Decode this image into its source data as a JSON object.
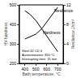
{
  "chart_data": {
    "type": "line",
    "x_label": "Bath temperature, °C",
    "y_label": "HV hardness",
    "y2_label": "Resilience J/cm²",
    "x": [
      400,
      450,
      500,
      550,
      600,
      650,
      700
    ],
    "series": [
      {
        "name": "Hardness",
        "color": "#000000",
        "values": [
          470,
          450,
          420,
          380,
          340,
          300,
          260
        ],
        "line_style": "solid"
      },
      {
        "name": "Resilience",
        "color": "#000000",
        "values": [
          5,
          5.5,
          6,
          7,
          8.5,
          10,
          11.5
        ],
        "axis": "y2",
        "line_style": "solid"
      }
    ],
    "xlim": [
      350,
      750
    ],
    "xticks": [
      400,
      500,
      600,
      700
    ],
    "ylim": [
      200,
      500
    ],
    "yticks": [
      200,
      300,
      400,
      500
    ],
    "y2lim": [
      0,
      12
    ],
    "y2ticks": [
      0,
      4,
      8,
      12
    ],
    "annotations": [
      "Steel 42 CD 4",
      "Austenitization: 850 °C",
      "Interrupting time: 15 min"
    ],
    "grid": false
  }
}
